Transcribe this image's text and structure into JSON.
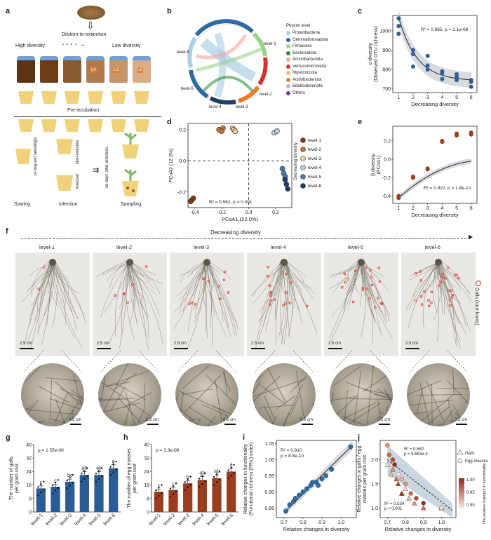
{
  "panels": {
    "a": {
      "letter": "a",
      "dilution": "Dilution-to-extinction",
      "high_diversity": "High diversity",
      "low_diversity": "Low diversity",
      "bottles": [
        "L1",
        "L2",
        "L3",
        "L4",
        "L5",
        "L6"
      ],
      "preincubation": "Pre-incubation",
      "seedlings": "10-day-old seedlings",
      "non_infected": "Non-infected",
      "infected": "Infected",
      "after_infection": "35 days after infection",
      "steps": [
        "Sowing",
        "Infection",
        "Sampling"
      ]
    },
    "b": {
      "letter": "b",
      "legend_title": "Phylum level",
      "phyla": [
        {
          "name": "Proteobacteria",
          "color": "#a9cfe3"
        },
        {
          "name": "Gemmatimonadota",
          "color": "#2f6aa3"
        },
        {
          "name": "Firmicutes",
          "color": "#9ad28a"
        },
        {
          "name": "Bacteroidota",
          "color": "#2e8f3a"
        },
        {
          "name": "Actinobacteriota",
          "color": "#f2a7a2"
        },
        {
          "name": "Verrucomicrobiota",
          "color": "#d7302f"
        },
        {
          "name": "Myxococcota",
          "color": "#f7c07a"
        },
        {
          "name": "Acidobacteriota",
          "color": "#ef7b22"
        },
        {
          "name": "Bdellovibrionota",
          "color": "#c5b0d6"
        },
        {
          "name": "Others",
          "color": "#6a3d9a"
        }
      ],
      "levels": [
        "level-1",
        "level-2",
        "level-3",
        "level-4",
        "level-5",
        "level-6"
      ]
    },
    "c": {
      "letter": "c",
      "ylabel": "α diversity (Observed OTU richness)",
      "xlabel": "Decreasing diversity",
      "stats": "R² = 0.865, p = 2.1e-08",
      "yticks": [
        "700",
        "800",
        "900",
        "1000"
      ],
      "xticks": [
        "1",
        "2",
        "3",
        "4",
        "5",
        "6"
      ]
    },
    "d": {
      "letter": "d",
      "xlabel": "PCoA1 (22.0%)",
      "ylabel": "PCoA2 (12.3%)",
      "stats": "R² = 0.562, p = 0.001",
      "legend_title": "Decreasing diversity",
      "xticks": [
        "-0.4",
        "-0.2",
        "0.0",
        "0.2"
      ],
      "yticks": [
        "0.2",
        "0.0",
        "-0.2"
      ],
      "groups": [
        {
          "name": "level-1",
          "color": "#8a3a12"
        },
        {
          "name": "level-2",
          "color": "#c8762d"
        },
        {
          "name": "level-3",
          "color": "#efcf9e"
        },
        {
          "name": "level-4",
          "color": "#b7cde0"
        },
        {
          "name": "level-5",
          "color": "#4f7aa8"
        },
        {
          "name": "level-6",
          "color": "#1e3d66"
        }
      ]
    },
    "e": {
      "letter": "e",
      "ylabel": "β diversity (PCoA1)",
      "xlabel": "Decreasing diversity",
      "stats": "R² = 0.922, p = 1.8e-10",
      "yticks": [
        "-0.4",
        "-0.2",
        "0.0",
        "0.2"
      ],
      "xticks": [
        "1",
        "2",
        "3",
        "4",
        "5",
        "6"
      ]
    },
    "f": {
      "letter": "f",
      "header": "Decreasing diversity",
      "levels": [
        "level-1",
        "level-2",
        "level-3",
        "level-4",
        "level-5",
        "level-6"
      ],
      "scale_top": "2.5 cm",
      "scale_bottom": "0.5 cm",
      "side_label": "Galls (root-knots)"
    },
    "g": {
      "letter": "g",
      "ylabel": "The number of galls per gram root",
      "stats": "p = 1.55e-06",
      "letters": [
        "c",
        "c",
        "bc",
        "ab",
        "ab",
        "a"
      ],
      "yticks": [
        "0",
        "8",
        "16",
        "24",
        "32",
        "40"
      ]
    },
    "h": {
      "letter": "h",
      "ylabel": "The number of egg masses per gram root",
      "stats": "p = 3.3e-08",
      "letters": [
        "c",
        "c",
        "b",
        "ab",
        "ab",
        "a"
      ],
      "yticks": [
        "0",
        "8",
        "16",
        "24",
        "32",
        "40"
      ]
    },
    "i": {
      "letter": "i",
      "ylabel": "Relative changes in functionality (Functional richness (FRic) index)",
      "xlabel": "Relative changes in diversity",
      "stats_r2": "R² = 0.910",
      "stats_p": "p = 8.8e-10",
      "yticks": [
        "0.85",
        "0.90",
        "0.95",
        "1.00",
        "1.05"
      ],
      "xticks": [
        "0.7",
        "0.8",
        "0.9",
        "1.0"
      ]
    },
    "j": {
      "letter": "j",
      "ylabel": "Relative changes in galls / egg masses per gram root",
      "xlabel": "Relative changes in diversity",
      "stats_eggs": "R² = 0.582",
      "stats_eggs_p": "p = 5.683e-4",
      "stats_galls": "R² = 0.534",
      "stats_galls_p": "p = 0.001",
      "legend": [
        "Galls",
        "Egg masses"
      ],
      "colorbar_title": "The relative changes in functionality",
      "colorbar_ticks": [
        "1.00",
        "0.95",
        "0.90"
      ],
      "yticks": [
        "1.0",
        "1.5",
        "2.0"
      ],
      "xticks": [
        "0.7",
        "0.8",
        "0.9",
        "1.0"
      ]
    }
  },
  "chart_data": [
    {
      "panel": "c",
      "type": "scatter",
      "xlabel": "Decreasing diversity",
      "ylabel": "α diversity (Observed OTU richness)",
      "x": [
        1,
        1,
        1,
        2,
        2,
        2,
        3,
        3,
        3,
        4,
        4,
        4,
        5,
        5,
        5,
        6,
        6,
        6
      ],
      "y": [
        1065,
        1025,
        985,
        900,
        880,
        815,
        870,
        820,
        800,
        780,
        750,
        790,
        760,
        775,
        745,
        745,
        735,
        710
      ],
      "ylim": [
        680,
        1080
      ],
      "xlim": [
        0.6,
        6.4
      ],
      "fit": "decreasing curve with CI band"
    },
    {
      "panel": "d",
      "type": "scatter",
      "xlabel": "PCoA1 (22.0%)",
      "ylabel": "PCoA2 (12.3%)",
      "xlim": [
        -0.45,
        0.32
      ],
      "ylim": [
        -0.3,
        0.24
      ],
      "series": [
        {
          "name": "level-1",
          "x": [
            -0.42,
            -0.41,
            -0.43
          ],
          "y": [
            -0.25,
            -0.24,
            -0.26
          ]
        },
        {
          "name": "level-2",
          "x": [
            -0.22,
            -0.19,
            -0.2
          ],
          "y": [
            0.2,
            0.21,
            0.19
          ]
        },
        {
          "name": "level-3",
          "x": [
            -0.12,
            -0.11,
            -0.1
          ],
          "y": [
            0.21,
            0.2,
            0.19
          ]
        },
        {
          "name": "level-4",
          "x": [
            0.19,
            0.21
          ],
          "y": [
            0.18,
            0.19
          ]
        },
        {
          "name": "level-5",
          "x": [
            0.25,
            0.26,
            0.27
          ],
          "y": [
            -0.05,
            -0.08,
            -0.1
          ]
        },
        {
          "name": "level-6",
          "x": [
            0.27,
            0.28,
            0.29
          ],
          "y": [
            -0.12,
            -0.15,
            -0.18
          ]
        }
      ]
    },
    {
      "panel": "e",
      "type": "scatter",
      "xlabel": "Decreasing diversity",
      "ylabel": "β diversity (PCoA1)",
      "x": [
        1,
        1,
        2,
        2,
        3,
        3,
        4,
        4,
        5,
        5,
        6,
        6
      ],
      "y": [
        -0.42,
        -0.4,
        -0.19,
        -0.2,
        -0.11,
        -0.1,
        0.2,
        0.19,
        0.26,
        0.28,
        0.27,
        0.29
      ],
      "ylim": [
        -0.48,
        0.36
      ],
      "xlim": [
        0.6,
        6.4
      ]
    },
    {
      "panel": "g",
      "type": "bar",
      "categories": [
        "level-1",
        "level-2",
        "level-3",
        "level-4",
        "level-5",
        "level-6"
      ],
      "values": [
        14,
        15,
        18,
        22,
        22,
        26
      ],
      "errors": [
        1.5,
        1.5,
        1.5,
        2,
        2,
        2
      ],
      "ylim": [
        0,
        40
      ],
      "ylabel": "The number of galls per gram root"
    },
    {
      "panel": "h",
      "type": "bar",
      "categories": [
        "level-1",
        "level-2",
        "level-3",
        "level-4",
        "level-5",
        "level-6"
      ],
      "values": [
        12,
        13,
        17,
        19,
        20,
        24
      ],
      "errors": [
        1.5,
        1.5,
        1.5,
        2,
        2,
        2
      ],
      "ylim": [
        0,
        40
      ],
      "ylabel": "The number of egg masses per gram root"
    },
    {
      "panel": "i",
      "type": "scatter",
      "xlabel": "Relative changes in diversity",
      "ylabel": "Relative changes in functionality (Functional richness (FRic) index)",
      "x": [
        0.71,
        0.73,
        0.75,
        0.76,
        0.78,
        0.8,
        0.82,
        0.84,
        0.85,
        0.87,
        0.88,
        0.9,
        0.92,
        0.95,
        1.05
      ],
      "y": [
        0.84,
        0.86,
        0.87,
        0.88,
        0.89,
        0.9,
        0.91,
        0.92,
        0.93,
        0.93,
        0.92,
        0.94,
        0.95,
        0.97,
        1.04
      ],
      "xlim": [
        0.66,
        1.08
      ],
      "ylim": [
        0.82,
        1.06
      ]
    },
    {
      "panel": "j",
      "type": "scatter",
      "xlabel": "Relative changes in diversity",
      "ylabel": "Relative changes in galls / egg masses per gram root",
      "xlim": [
        0.66,
        1.08
      ],
      "ylim": [
        0.8,
        2.4
      ],
      "series": [
        {
          "name": "Galls",
          "x": [
            0.7,
            0.72,
            0.73,
            0.75,
            0.76,
            0.78,
            0.8,
            0.82,
            0.85,
            0.9,
            1.0
          ],
          "y": [
            1.9,
            1.7,
            1.8,
            1.6,
            1.5,
            1.3,
            1.4,
            1.2,
            1.1,
            1.0,
            1.0
          ]
        },
        {
          "name": "Egg masses",
          "x": [
            0.7,
            0.71,
            0.73,
            0.74,
            0.76,
            0.78,
            0.8,
            0.83,
            0.86,
            0.9,
            1.0
          ],
          "y": [
            2.3,
            2.1,
            2.0,
            1.9,
            1.7,
            1.6,
            1.5,
            1.3,
            1.2,
            1.1,
            1.0
          ]
        }
      ]
    }
  ]
}
